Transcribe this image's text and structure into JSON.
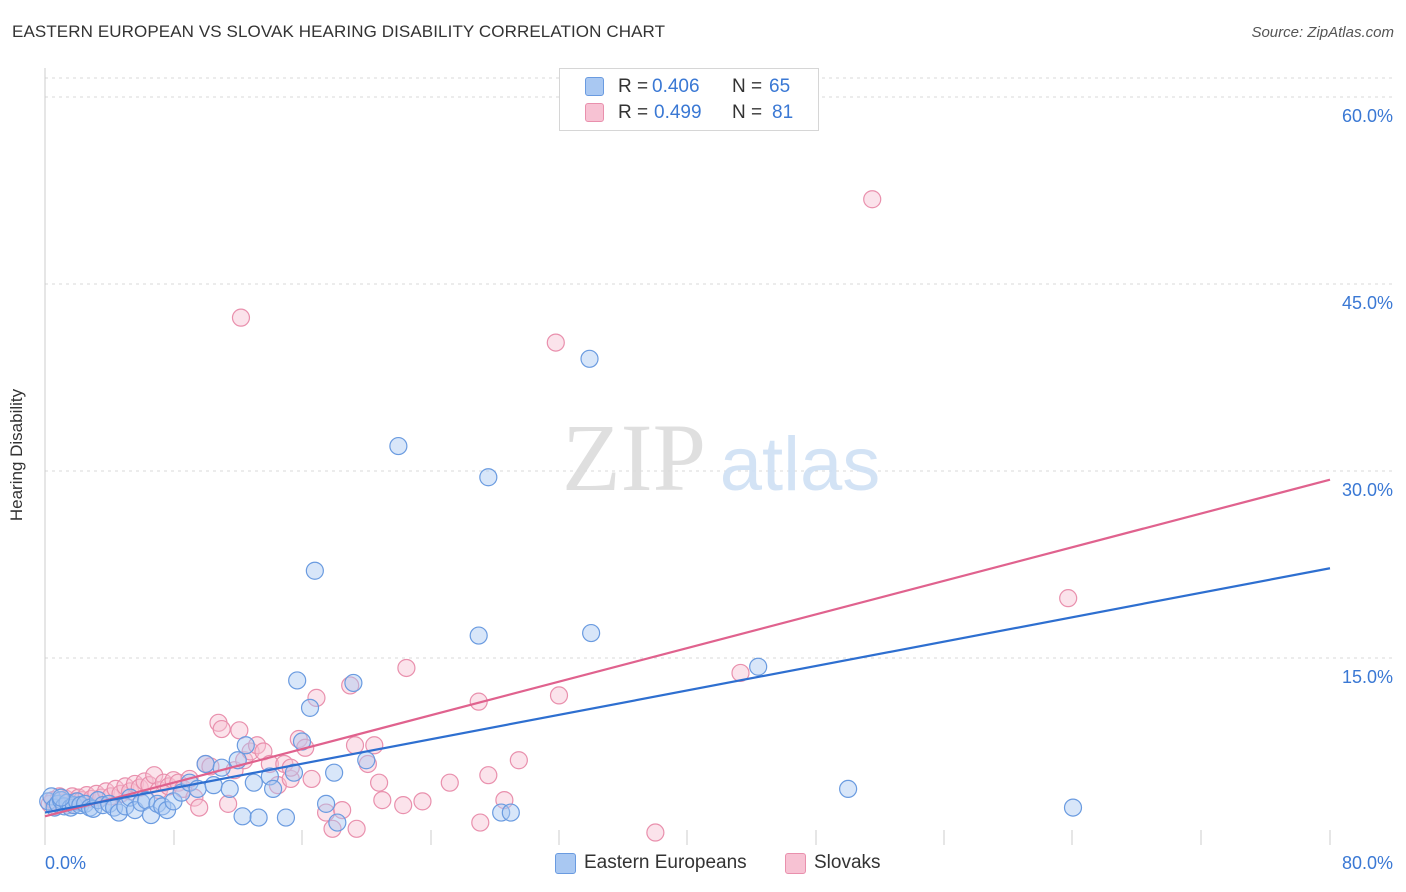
{
  "header": {
    "title": "EASTERN EUROPEAN VS SLOVAK HEARING DISABILITY CORRELATION CHART",
    "source": "Source: ZipAtlas.com"
  },
  "watermark": {
    "zip": "ZIP",
    "atlas": "atlas"
  },
  "legend": {
    "series1": {
      "r_label": "R = ",
      "r_value": "0.406",
      "n_label": "N = ",
      "n_value": "65"
    },
    "series2": {
      "r_label": "R = ",
      "r_value": "0.499",
      "n_label": "N = ",
      "n_value": "81"
    }
  },
  "bottom_legend": {
    "series1": "Eastern Europeans",
    "series2": "Slovaks"
  },
  "colors": {
    "series1_stroke": "#6a9be0",
    "series1_fill": "#a9c8f2",
    "series1_line": "#2e6fd0",
    "series2_stroke": "#e990ad",
    "series2_fill": "#f7c2d3",
    "series2_line": "#e0628e",
    "tick_text": "#3a78d4",
    "grid": "#d9d9d9",
    "axis": "#cccccc"
  },
  "chart_data": {
    "type": "scatter",
    "title": "EASTERN EUROPEAN VS SLOVAK HEARING DISABILITY CORRELATION CHART",
    "xlabel": "",
    "ylabel": "Hearing Disability",
    "xlim": [
      0,
      80
    ],
    "ylim": [
      0,
      61
    ],
    "x_tick_labels": [
      "0.0%",
      "80.0%"
    ],
    "y_ticks": [
      15,
      30,
      45,
      60
    ],
    "y_tick_labels": [
      "15.0%",
      "30.0%",
      "45.0%",
      "60.0%"
    ],
    "legend_position": "top-center",
    "series": [
      {
        "name": "Eastern Europeans",
        "r": 0.406,
        "n": 65,
        "trend": {
          "x": [
            0,
            80
          ],
          "y": [
            2.6,
            22.2
          ]
        },
        "points": [
          [
            0.2,
            3.5
          ],
          [
            0.4,
            3.9
          ],
          [
            0.6,
            3.0
          ],
          [
            0.8,
            3.3
          ],
          [
            1.0,
            3.6
          ],
          [
            1.2,
            3.1
          ],
          [
            1.4,
            3.4
          ],
          [
            1.6,
            3.0
          ],
          [
            1.8,
            3.2
          ],
          [
            2.0,
            3.5
          ],
          [
            2.2,
            3.2
          ],
          [
            2.5,
            3.3
          ],
          [
            2.8,
            3.0
          ],
          [
            3.0,
            2.9
          ],
          [
            3.3,
            3.6
          ],
          [
            3.6,
            3.2
          ],
          [
            4.0,
            3.3
          ],
          [
            4.3,
            3.0
          ],
          [
            4.6,
            2.6
          ],
          [
            5.0,
            3.1
          ],
          [
            5.3,
            3.8
          ],
          [
            5.6,
            2.8
          ],
          [
            6.0,
            3.4
          ],
          [
            6.3,
            3.6
          ],
          [
            6.6,
            2.4
          ],
          [
            7.0,
            3.3
          ],
          [
            7.3,
            3.1
          ],
          [
            7.6,
            2.8
          ],
          [
            8.0,
            3.5
          ],
          [
            8.5,
            4.2
          ],
          [
            9.0,
            5.0
          ],
          [
            9.5,
            4.5
          ],
          [
            10.0,
            6.5
          ],
          [
            10.5,
            4.8
          ],
          [
            11.0,
            6.2
          ],
          [
            11.5,
            4.5
          ],
          [
            12.0,
            6.8
          ],
          [
            12.3,
            2.3
          ],
          [
            12.5,
            8.0
          ],
          [
            13.0,
            5.0
          ],
          [
            13.3,
            2.2
          ],
          [
            14.0,
            5.5
          ],
          [
            14.2,
            4.5
          ],
          [
            15.0,
            2.2
          ],
          [
            15.5,
            5.8
          ],
          [
            15.7,
            13.2
          ],
          [
            16.0,
            8.3
          ],
          [
            16.5,
            11.0
          ],
          [
            16.8,
            22.0
          ],
          [
            17.5,
            3.3
          ],
          [
            18.0,
            5.8
          ],
          [
            18.2,
            1.8
          ],
          [
            19.2,
            13.0
          ],
          [
            20.0,
            6.8
          ],
          [
            22.0,
            32.0
          ],
          [
            27.0,
            16.8
          ],
          [
            27.6,
            29.5
          ],
          [
            28.4,
            2.6
          ],
          [
            29.0,
            2.6
          ],
          [
            33.9,
            39.0
          ],
          [
            34.0,
            17.0
          ],
          [
            44.4,
            14.3
          ],
          [
            50.0,
            4.5
          ],
          [
            64.0,
            3.0
          ],
          [
            1.0,
            3.8
          ]
        ]
      },
      {
        "name": "Slovaks",
        "r": 0.499,
        "n": 81,
        "trend": {
          "x": [
            0,
            80
          ],
          "y": [
            2.3,
            29.3
          ]
        },
        "points": [
          [
            0.3,
            3.3
          ],
          [
            0.5,
            3.6
          ],
          [
            0.7,
            3.1
          ],
          [
            0.9,
            3.9
          ],
          [
            1.1,
            3.4
          ],
          [
            1.3,
            3.7
          ],
          [
            1.5,
            3.2
          ],
          [
            1.7,
            3.9
          ],
          [
            1.9,
            3.5
          ],
          [
            2.1,
            3.8
          ],
          [
            2.3,
            3.6
          ],
          [
            2.6,
            4.0
          ],
          [
            2.9,
            3.7
          ],
          [
            3.2,
            4.1
          ],
          [
            3.5,
            3.8
          ],
          [
            3.8,
            4.3
          ],
          [
            4.1,
            3.9
          ],
          [
            4.4,
            4.5
          ],
          [
            4.7,
            4.1
          ],
          [
            5.0,
            4.7
          ],
          [
            5.3,
            4.3
          ],
          [
            5.6,
            4.9
          ],
          [
            5.9,
            4.6
          ],
          [
            6.2,
            5.1
          ],
          [
            6.5,
            4.8
          ],
          [
            6.8,
            5.6
          ],
          [
            7.1,
            4.4
          ],
          [
            7.4,
            5.0
          ],
          [
            7.7,
            4.7
          ],
          [
            8.0,
            5.2
          ],
          [
            8.3,
            5.0
          ],
          [
            8.6,
            4.5
          ],
          [
            9.0,
            5.3
          ],
          [
            9.3,
            3.8
          ],
          [
            9.6,
            3.0
          ],
          [
            10.0,
            6.5
          ],
          [
            10.3,
            6.3
          ],
          [
            10.8,
            9.8
          ],
          [
            11.0,
            9.3
          ],
          [
            11.4,
            3.3
          ],
          [
            11.8,
            6.0
          ],
          [
            12.1,
            9.2
          ],
          [
            12.4,
            6.8
          ],
          [
            12.8,
            7.5
          ],
          [
            13.2,
            8.0
          ],
          [
            13.6,
            7.5
          ],
          [
            14.0,
            6.5
          ],
          [
            14.5,
            4.8
          ],
          [
            14.9,
            6.5
          ],
          [
            15.3,
            5.3
          ],
          [
            15.8,
            8.5
          ],
          [
            16.2,
            7.8
          ],
          [
            16.6,
            5.3
          ],
          [
            16.9,
            11.8
          ],
          [
            17.5,
            2.6
          ],
          [
            17.9,
            1.3
          ],
          [
            19.0,
            12.8
          ],
          [
            19.3,
            8.0
          ],
          [
            20.1,
            6.5
          ],
          [
            20.5,
            8.0
          ],
          [
            20.8,
            5.0
          ],
          [
            21.0,
            3.6
          ],
          [
            22.3,
            3.2
          ],
          [
            22.5,
            14.2
          ],
          [
            23.5,
            3.5
          ],
          [
            25.2,
            5.0
          ],
          [
            27.0,
            11.5
          ],
          [
            27.6,
            5.6
          ],
          [
            28.6,
            3.6
          ],
          [
            29.5,
            6.8
          ],
          [
            32.0,
            12.0
          ],
          [
            31.8,
            40.3
          ],
          [
            12.2,
            42.3
          ],
          [
            38.0,
            1.0
          ],
          [
            43.3,
            13.8
          ],
          [
            51.5,
            51.8
          ],
          [
            63.7,
            19.8
          ],
          [
            15.3,
            6.2
          ],
          [
            19.4,
            1.3
          ],
          [
            18.5,
            2.8
          ],
          [
            27.1,
            1.8
          ]
        ]
      }
    ]
  }
}
